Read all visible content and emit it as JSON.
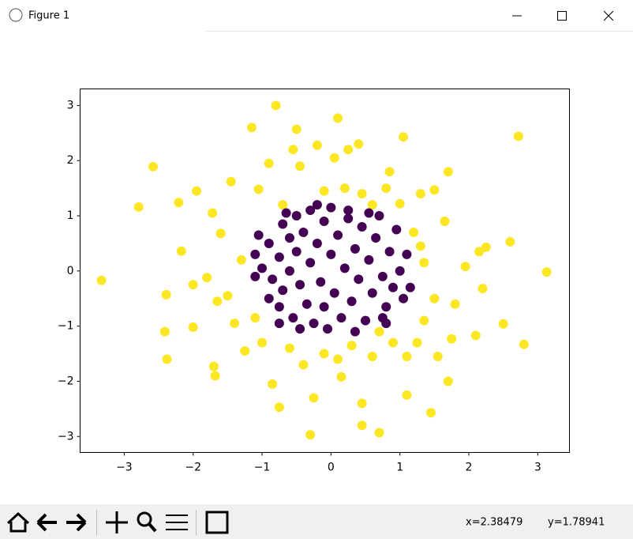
{
  "window": {
    "title": "Figure 1"
  },
  "status": {
    "x": "x=2.38479",
    "y": "y=1.78941"
  },
  "chart_data": {
    "type": "scatter",
    "xlim": [
      -3.64,
      3.46
    ],
    "ylim": [
      -3.29,
      3.3
    ],
    "xticks": [
      {
        "value": -3,
        "label": "−3"
      },
      {
        "value": -2,
        "label": "−2"
      },
      {
        "value": -1,
        "label": "−1"
      },
      0,
      1,
      2,
      3
    ],
    "yticks": [
      {
        "value": -3,
        "label": "−3"
      },
      {
        "value": -2,
        "label": "−2"
      },
      {
        "value": -1,
        "label": "−1"
      },
      0,
      1,
      2,
      3
    ],
    "series": [
      {
        "color": "#fde725",
        "x": [
          -3.33,
          -2.79,
          -2.58,
          -2.39,
          -2.41,
          -2.38,
          -2.17,
          -2.21,
          -2.0,
          -2.0,
          -1.95,
          -1.72,
          -1.7,
          -1.68,
          -1.6,
          -1.5,
          -1.45,
          -1.4,
          -1.3,
          -1.25,
          -1.15,
          -1.1,
          -1.05,
          -1.0,
          -0.9,
          -0.85,
          -0.8,
          -0.75,
          -0.7,
          -0.6,
          -0.5,
          -0.55,
          -0.45,
          -0.4,
          -0.3,
          -0.25,
          -0.2,
          -0.1,
          -0.1,
          0.05,
          0.1,
          0.1,
          0.15,
          0.2,
          0.25,
          0.3,
          0.4,
          0.45,
          0.45,
          0.45,
          0.6,
          0.6,
          0.7,
          0.7,
          0.8,
          0.85,
          0.9,
          1.0,
          1.05,
          1.1,
          1.1,
          1.2,
          1.25,
          1.3,
          1.35,
          1.45,
          1.5,
          1.5,
          1.55,
          1.65,
          1.7,
          1.7,
          1.75,
          1.8,
          1.95,
          2.1,
          2.15,
          2.2,
          2.25,
          2.5,
          2.6,
          2.72,
          2.8,
          3.13,
          -1.8,
          -1.65,
          1.35,
          1.3
        ],
        "y": [
          -0.17,
          1.16,
          1.89,
          -0.43,
          -1.1,
          -1.6,
          0.36,
          1.24,
          -1.02,
          -0.25,
          1.45,
          1.05,
          -1.73,
          -1.9,
          0.68,
          -0.45,
          1.62,
          -0.95,
          0.2,
          -1.45,
          2.6,
          -0.85,
          1.48,
          -1.3,
          1.95,
          -2.05,
          3.0,
          -2.47,
          1.2,
          -1.4,
          2.57,
          2.2,
          1.9,
          -1.7,
          -2.97,
          -2.3,
          2.28,
          1.45,
          -1.5,
          2.05,
          2.77,
          -1.6,
          -1.92,
          1.5,
          2.2,
          -1.35,
          2.3,
          -2.8,
          1.4,
          -2.4,
          1.2,
          -1.55,
          -1.1,
          -2.93,
          1.5,
          1.8,
          -1.3,
          1.22,
          2.43,
          -1.55,
          -2.25,
          0.7,
          -1.3,
          1.4,
          -0.9,
          -2.57,
          -0.5,
          1.47,
          -1.55,
          0.9,
          1.8,
          -2.0,
          -1.23,
          -0.6,
          0.08,
          -1.17,
          0.35,
          -0.32,
          0.43,
          -0.96,
          0.53,
          2.44,
          -1.33,
          -0.02,
          -0.12,
          -0.55,
          0.15,
          0.45
        ]
      },
      {
        "color": "#440154",
        "x": [
          -1.1,
          -1.1,
          -1.0,
          -0.9,
          -0.9,
          -0.85,
          -0.75,
          -0.75,
          -0.7,
          -0.7,
          -0.6,
          -0.6,
          -0.55,
          -0.5,
          -0.5,
          -0.45,
          -0.4,
          -0.35,
          -0.3,
          -0.3,
          -0.25,
          -0.2,
          -0.15,
          -0.1,
          -0.1,
          0.0,
          0.0,
          0.05,
          0.1,
          0.15,
          0.2,
          0.25,
          0.3,
          0.35,
          0.4,
          0.45,
          0.5,
          0.55,
          0.6,
          0.65,
          0.7,
          0.75,
          0.8,
          0.85,
          0.9,
          0.95,
          1.0,
          1.05,
          1.1,
          -0.75,
          -0.45,
          0.75,
          1.15,
          -1.05,
          0.25,
          -0.2,
          0.55,
          -0.65,
          0.8,
          -0.05,
          0.35
        ],
        "y": [
          0.3,
          -0.1,
          0.05,
          0.5,
          -0.5,
          -0.15,
          0.25,
          -0.65,
          0.85,
          -0.35,
          0.6,
          0.0,
          -0.85,
          1.0,
          0.35,
          -0.25,
          0.7,
          -0.6,
          1.1,
          0.15,
          -0.95,
          0.5,
          -0.2,
          0.9,
          -0.65,
          0.3,
          1.15,
          -0.4,
          0.65,
          -0.85,
          0.05,
          0.95,
          -0.55,
          0.4,
          -0.15,
          0.8,
          -0.9,
          0.2,
          -0.4,
          0.6,
          1.0,
          -0.1,
          -0.65,
          0.35,
          -0.3,
          0.75,
          0.0,
          -0.5,
          0.3,
          -0.95,
          -1.05,
          -0.85,
          -0.3,
          0.65,
          1.1,
          1.2,
          1.05,
          1.05,
          -0.95,
          -1.05,
          -1.1
        ]
      }
    ]
  }
}
